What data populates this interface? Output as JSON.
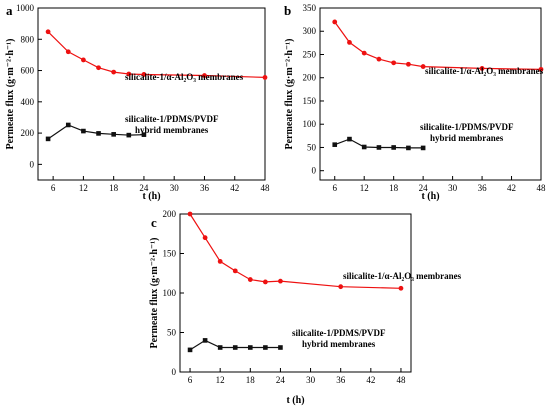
{
  "chart_data": [
    {
      "type": "line",
      "panel_label": "a",
      "xlabel": "t (h)",
      "ylabel": "Permeate flux (g·m⁻²·h⁻¹)",
      "xlim": [
        3,
        48
      ],
      "ylim": [
        -100,
        1000
      ],
      "xticks": [
        6,
        12,
        18,
        24,
        30,
        36,
        42,
        48
      ],
      "yticks": [
        0,
        200,
        400,
        600,
        800,
        1000
      ],
      "series": [
        {
          "label": "silicalite-1/α-Al₂O₃ membranes",
          "color": "#ee1111",
          "marker": "circle",
          "x": [
            5,
            9,
            12,
            15,
            18,
            21,
            24,
            36,
            48
          ],
          "y": [
            848,
            720,
            668,
            618,
            590,
            578,
            575,
            568,
            556
          ]
        },
        {
          "label": "silicalite-1/PDMS/PVDF hybrid membranes",
          "label_lines": [
            "silicalite-1/PDMS/PVDF",
            "hybrid membranes"
          ],
          "color": "#111111",
          "marker": "square",
          "x": [
            5,
            9,
            12,
            15,
            18,
            21,
            24
          ],
          "y": [
            163,
            252,
            213,
            198,
            192,
            187,
            190
          ]
        }
      ]
    },
    {
      "type": "line",
      "panel_label": "b",
      "xlabel": "t (h)",
      "ylabel": "Permeate flux (g·m⁻²·h⁻¹)",
      "xlim": [
        3,
        48
      ],
      "ylim": [
        -20,
        350
      ],
      "xticks": [
        6,
        12,
        18,
        24,
        30,
        36,
        42,
        48
      ],
      "yticks": [
        0,
        50,
        100,
        150,
        200,
        250,
        300,
        350
      ],
      "series": [
        {
          "label": "silicalite-1/α-Al₂O₃ membranes",
          "color": "#ee1111",
          "marker": "circle",
          "x": [
            6,
            9,
            12,
            15,
            18,
            21,
            24,
            36,
            48
          ],
          "y": [
            320,
            276,
            253,
            240,
            232,
            229,
            224,
            220,
            218
          ]
        },
        {
          "label": "silicalite-1/PDMS/PVDF hybrid membranes",
          "label_lines": [
            "silicalite-1/PDMS/PVDF",
            "hybrid membranes"
          ],
          "color": "#111111",
          "marker": "square",
          "x": [
            6,
            9,
            12,
            15,
            18,
            21,
            24
          ],
          "y": [
            56,
            68,
            51,
            50,
            50,
            49,
            49
          ]
        }
      ]
    },
    {
      "type": "line",
      "panel_label": "c",
      "xlabel": "t (h)",
      "ylabel": "Permeate flux (g·m⁻²·h⁻¹)",
      "xlim": [
        4,
        50
      ],
      "ylim": [
        0,
        200
      ],
      "xticks": [
        6,
        12,
        18,
        24,
        30,
        36,
        42,
        48
      ],
      "yticks": [
        0,
        50,
        100,
        150,
        200
      ],
      "series": [
        {
          "label": "silicalite-1/α-Al₂O₃ membranes",
          "color": "#ee1111",
          "marker": "circle",
          "x": [
            6,
            9,
            12,
            15,
            18,
            21,
            24,
            36,
            48
          ],
          "y": [
            200,
            170,
            140,
            128,
            117,
            114,
            115,
            108,
            106
          ]
        },
        {
          "label": "silicalite-1/PDMS/PVDF hybrid membranes",
          "label_lines": [
            "silicalite-1/PDMS/PVDF",
            "hybrid membranes"
          ],
          "color": "#111111",
          "marker": "square",
          "x": [
            6,
            9,
            12,
            15,
            18,
            21,
            24
          ],
          "y": [
            28,
            40,
            31,
            31,
            31,
            31,
            31
          ]
        }
      ]
    }
  ]
}
